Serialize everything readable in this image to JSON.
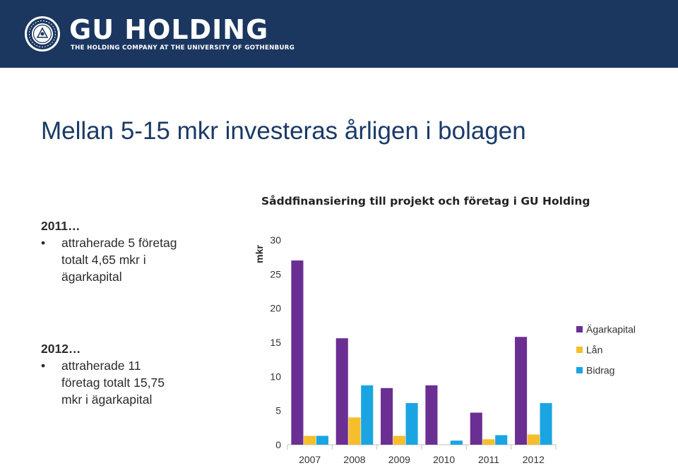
{
  "header": {
    "brand": "GU HOLDING",
    "tagline": "THE HOLDING COMPANY AT THE UNIVERSITY OF GOTHENBURG",
    "seal_text": "UNIVERSITAS GOTHOBURGENSIS 1891",
    "colors": {
      "background": "#1b3760",
      "text": "#ffffff"
    }
  },
  "slide": {
    "title": "Mellan 5-15 mkr investeras årligen i bolagen",
    "blocks": [
      {
        "year": "2011…",
        "bullet": [
          "attraherade 5 företag",
          "totalt 4,65 mkr i",
          "ägarkapital"
        ]
      },
      {
        "year": "2012…",
        "bullet": [
          "attraherade 11",
          "företag totalt 15,75",
          "mkr i ägarkapital"
        ]
      }
    ]
  },
  "chart_data": {
    "type": "bar",
    "title": "Såddfinansiering till projekt och företag i GU Holding",
    "ylabel": "mkr",
    "xlabel": "",
    "categories": [
      "2007",
      "2008",
      "2009",
      "2010",
      "2011",
      "2012"
    ],
    "ylim": [
      0,
      30
    ],
    "yticks": [
      0,
      5,
      10,
      15,
      20,
      25,
      30
    ],
    "legend_position": "right",
    "series": [
      {
        "name": "Ägarkapital",
        "color": "#6b2f93",
        "values": [
          27,
          15.6,
          8.3,
          8.7,
          4.7,
          15.8
        ]
      },
      {
        "name": "Lån",
        "color": "#f5be2c",
        "values": [
          1.3,
          4,
          1.3,
          0,
          0.8,
          1.5
        ]
      },
      {
        "name": "Bidrag",
        "color": "#1aa5e2",
        "values": [
          1.3,
          8.7,
          6.1,
          0.6,
          1.4,
          6.1
        ]
      }
    ]
  }
}
